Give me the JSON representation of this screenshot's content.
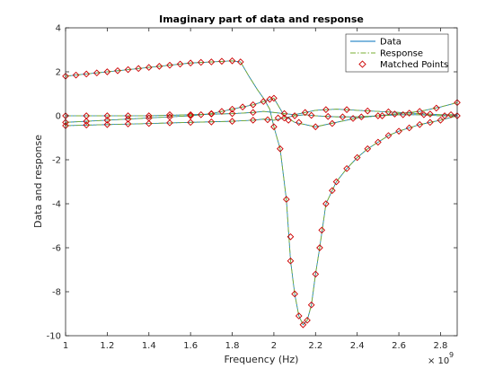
{
  "chart_data": {
    "type": "line",
    "title": "Imaginary part of data and response",
    "xlabel": "Frequency (Hz)",
    "ylabel": "Data and response",
    "x_exponent_label": "× 10",
    "x_exponent_power": "9",
    "xlim": [
      1.0,
      2.88
    ],
    "ylim": [
      -10,
      4
    ],
    "x_ticks": [
      1,
      1.2,
      1.4,
      1.6,
      1.8,
      2,
      2.2,
      2.4,
      2.6,
      2.8
    ],
    "x_tick_labels": [
      "1",
      "1.2",
      "1.4",
      "1.6",
      "1.8",
      "2",
      "2.2",
      "2.4",
      "2.6",
      "2.8"
    ],
    "y_ticks": [
      4,
      2,
      0,
      -2,
      -4,
      -6,
      -8,
      -10
    ],
    "y_tick_labels": [
      "4",
      "2",
      "0",
      "-2",
      "-4",
      "-6",
      "-8",
      "-10"
    ],
    "grid": false,
    "legend_position": "top-right",
    "legend": [
      "Data",
      "Response",
      "Matched Points"
    ],
    "colors": {
      "data": "#0072bd",
      "response": "#77ac30",
      "matched_points": "#cc0000",
      "axes": "#262626"
    },
    "series": [
      {
        "name": "Data",
        "x": [
          1.0,
          1.1,
          1.2,
          1.3,
          1.4,
          1.5,
          1.6,
          1.7,
          1.8,
          1.84,
          1.88,
          1.92,
          1.95,
          1.98,
          2.0,
          2.03,
          2.06,
          2.08,
          2.1,
          2.12,
          2.14,
          2.16,
          2.18,
          2.2,
          2.22,
          2.25,
          2.3,
          2.35,
          2.4,
          2.45,
          2.5,
          2.55,
          2.6,
          2.7,
          2.8,
          2.88
        ],
        "y": [
          1.8,
          1.9,
          2.0,
          2.1,
          2.2,
          2.3,
          2.4,
          2.45,
          2.5,
          2.45,
          1.8,
          1.2,
          0.8,
          0.3,
          -0.5,
          -1.5,
          -3.8,
          -6.6,
          -8.1,
          -9.1,
          -9.5,
          -9.3,
          -8.6,
          -7.2,
          -6.0,
          -4.0,
          -3.0,
          -2.4,
          -1.9,
          -1.5,
          -1.2,
          -0.9,
          -0.7,
          -0.4,
          -0.2,
          0.0
        ]
      },
      {
        "name": "Response",
        "x": [
          1.0,
          1.1,
          1.2,
          1.3,
          1.4,
          1.5,
          1.6,
          1.7,
          1.8,
          1.84,
          1.88,
          1.92,
          1.95,
          1.98,
          2.0,
          2.03,
          2.06,
          2.08,
          2.1,
          2.12,
          2.14,
          2.16,
          2.18,
          2.2,
          2.22,
          2.25,
          2.3,
          2.35,
          2.4,
          2.45,
          2.5,
          2.55,
          2.6,
          2.7,
          2.8,
          2.88
        ],
        "y": [
          1.8,
          1.9,
          2.0,
          2.1,
          2.2,
          2.3,
          2.4,
          2.45,
          2.5,
          2.45,
          1.8,
          1.2,
          0.8,
          0.3,
          -0.5,
          -1.5,
          -3.8,
          -6.6,
          -8.1,
          -9.1,
          -9.5,
          -9.3,
          -8.6,
          -7.2,
          -6.0,
          -4.0,
          -3.0,
          -2.4,
          -1.9,
          -1.5,
          -1.2,
          -0.9,
          -0.7,
          -0.4,
          -0.2,
          0.0
        ]
      },
      {
        "name": "Data",
        "x": [
          1.0,
          1.2,
          1.4,
          1.6,
          1.8,
          1.9,
          1.95,
          2.0,
          2.05,
          2.1,
          2.15,
          2.2,
          2.3,
          2.4,
          2.5,
          2.6,
          2.7,
          2.8,
          2.88
        ],
        "y": [
          0.0,
          0.0,
          0.0,
          0.05,
          0.1,
          0.15,
          0.2,
          0.15,
          0.1,
          0.05,
          0.15,
          0.25,
          0.3,
          0.25,
          0.2,
          0.15,
          0.1,
          0.05,
          0.05
        ]
      },
      {
        "name": "Response",
        "x": [
          1.0,
          1.2,
          1.4,
          1.6,
          1.8,
          1.9,
          1.95,
          2.0,
          2.05,
          2.1,
          2.15,
          2.2,
          2.3,
          2.4,
          2.5,
          2.6,
          2.7,
          2.8,
          2.88
        ],
        "y": [
          0.0,
          0.0,
          0.0,
          0.05,
          0.1,
          0.15,
          0.2,
          0.15,
          0.1,
          0.05,
          0.15,
          0.25,
          0.3,
          0.25,
          0.2,
          0.15,
          0.1,
          0.05,
          0.05
        ]
      },
      {
        "name": "Data",
        "x": [
          1.0,
          1.2,
          1.4,
          1.6,
          1.7,
          1.8,
          1.9,
          1.95,
          2.0,
          2.05,
          2.1,
          2.2,
          2.3,
          2.4,
          2.5,
          2.6,
          2.7,
          2.8,
          2.88
        ],
        "y": [
          -0.3,
          -0.2,
          -0.1,
          0.0,
          0.1,
          0.3,
          0.5,
          0.65,
          0.8,
          0.0,
          -0.3,
          -0.5,
          -0.3,
          -0.1,
          0.0,
          0.1,
          0.2,
          0.4,
          0.6
        ]
      },
      {
        "name": "Response",
        "x": [
          1.0,
          1.2,
          1.4,
          1.6,
          1.7,
          1.8,
          1.9,
          1.95,
          2.0,
          2.05,
          2.1,
          2.2,
          2.3,
          2.4,
          2.5,
          2.6,
          2.7,
          2.8,
          2.88
        ],
        "y": [
          -0.3,
          -0.2,
          -0.1,
          0.0,
          0.1,
          0.3,
          0.5,
          0.65,
          0.8,
          0.0,
          -0.3,
          -0.5,
          -0.3,
          -0.1,
          0.0,
          0.1,
          0.2,
          0.4,
          0.6
        ]
      },
      {
        "name": "Data",
        "x": [
          1.0,
          1.2,
          1.4,
          1.6,
          1.8,
          1.9,
          1.95,
          2.0,
          2.05,
          2.1,
          2.15,
          2.2,
          2.3,
          2.4,
          2.5,
          2.6,
          2.7,
          2.8,
          2.88
        ],
        "y": [
          -0.45,
          -0.4,
          -0.35,
          -0.3,
          -0.25,
          -0.2,
          -0.15,
          -0.2,
          -0.1,
          0.0,
          0.05,
          0.0,
          -0.05,
          -0.05,
          0.0,
          0.05,
          0.05,
          0.0,
          0.0
        ]
      },
      {
        "name": "Response",
        "x": [
          1.0,
          1.2,
          1.4,
          1.6,
          1.8,
          1.9,
          1.95,
          2.0,
          2.05,
          2.1,
          2.15,
          2.2,
          2.3,
          2.4,
          2.5,
          2.6,
          2.7,
          2.8,
          2.88
        ],
        "y": [
          -0.45,
          -0.4,
          -0.35,
          -0.3,
          -0.25,
          -0.2,
          -0.15,
          -0.2,
          -0.1,
          0.0,
          0.05,
          0.0,
          -0.05,
          -0.05,
          0.0,
          0.05,
          0.05,
          0.0,
          0.0
        ]
      }
    ],
    "matched_points": [
      {
        "x": 1.0,
        "y": 1.8
      },
      {
        "x": 1.05,
        "y": 1.85
      },
      {
        "x": 1.1,
        "y": 1.9
      },
      {
        "x": 1.15,
        "y": 1.95
      },
      {
        "x": 1.2,
        "y": 2.0
      },
      {
        "x": 1.25,
        "y": 2.05
      },
      {
        "x": 1.3,
        "y": 2.1
      },
      {
        "x": 1.35,
        "y": 2.15
      },
      {
        "x": 1.4,
        "y": 2.2
      },
      {
        "x": 1.45,
        "y": 2.25
      },
      {
        "x": 1.5,
        "y": 2.3
      },
      {
        "x": 1.55,
        "y": 2.35
      },
      {
        "x": 1.6,
        "y": 2.4
      },
      {
        "x": 1.65,
        "y": 2.43
      },
      {
        "x": 1.7,
        "y": 2.45
      },
      {
        "x": 1.75,
        "y": 2.48
      },
      {
        "x": 1.8,
        "y": 2.5
      },
      {
        "x": 1.84,
        "y": 2.45
      },
      {
        "x": 2.0,
        "y": -0.5
      },
      {
        "x": 2.03,
        "y": -1.5
      },
      {
        "x": 2.06,
        "y": -3.8
      },
      {
        "x": 2.08,
        "y": -5.5
      },
      {
        "x": 2.08,
        "y": -6.6
      },
      {
        "x": 2.1,
        "y": -8.1
      },
      {
        "x": 2.12,
        "y": -9.1
      },
      {
        "x": 2.14,
        "y": -9.5
      },
      {
        "x": 2.16,
        "y": -9.3
      },
      {
        "x": 2.18,
        "y": -8.6
      },
      {
        "x": 2.2,
        "y": -7.2
      },
      {
        "x": 2.22,
        "y": -6.0
      },
      {
        "x": 2.23,
        "y": -5.2
      },
      {
        "x": 2.25,
        "y": -4.0
      },
      {
        "x": 2.28,
        "y": -3.4
      },
      {
        "x": 2.3,
        "y": -3.0
      },
      {
        "x": 2.35,
        "y": -2.4
      },
      {
        "x": 2.4,
        "y": -1.9
      },
      {
        "x": 2.45,
        "y": -1.5
      },
      {
        "x": 2.5,
        "y": -1.2
      },
      {
        "x": 2.55,
        "y": -0.9
      },
      {
        "x": 2.6,
        "y": -0.7
      },
      {
        "x": 2.65,
        "y": -0.55
      },
      {
        "x": 2.7,
        "y": -0.4
      },
      {
        "x": 2.75,
        "y": -0.3
      },
      {
        "x": 2.8,
        "y": -0.2
      },
      {
        "x": 2.88,
        "y": 0.0
      },
      {
        "x": 1.0,
        "y": 0.0
      },
      {
        "x": 1.1,
        "y": 0.0
      },
      {
        "x": 1.2,
        "y": 0.0
      },
      {
        "x": 1.3,
        "y": 0.0
      },
      {
        "x": 1.4,
        "y": 0.0
      },
      {
        "x": 1.5,
        "y": 0.05
      },
      {
        "x": 1.6,
        "y": 0.05
      },
      {
        "x": 1.7,
        "y": 0.08
      },
      {
        "x": 1.8,
        "y": 0.1
      },
      {
        "x": 1.9,
        "y": 0.15
      },
      {
        "x": 2.05,
        "y": 0.1
      },
      {
        "x": 2.15,
        "y": 0.15
      },
      {
        "x": 2.25,
        "y": 0.28
      },
      {
        "x": 2.35,
        "y": 0.28
      },
      {
        "x": 2.45,
        "y": 0.22
      },
      {
        "x": 2.55,
        "y": 0.18
      },
      {
        "x": 2.65,
        "y": 0.12
      },
      {
        "x": 2.75,
        "y": 0.08
      },
      {
        "x": 2.85,
        "y": 0.05
      },
      {
        "x": 1.0,
        "y": -0.3
      },
      {
        "x": 1.1,
        "y": -0.25
      },
      {
        "x": 1.2,
        "y": -0.2
      },
      {
        "x": 1.3,
        "y": -0.15
      },
      {
        "x": 1.4,
        "y": -0.1
      },
      {
        "x": 1.5,
        "y": -0.05
      },
      {
        "x": 1.6,
        "y": 0.0
      },
      {
        "x": 1.65,
        "y": 0.05
      },
      {
        "x": 1.7,
        "y": 0.1
      },
      {
        "x": 1.75,
        "y": 0.2
      },
      {
        "x": 1.8,
        "y": 0.3
      },
      {
        "x": 1.85,
        "y": 0.4
      },
      {
        "x": 1.9,
        "y": 0.5
      },
      {
        "x": 1.95,
        "y": 0.65
      },
      {
        "x": 1.98,
        "y": 0.75
      },
      {
        "x": 2.0,
        "y": 0.8
      },
      {
        "x": 2.02,
        "y": -0.1
      },
      {
        "x": 2.07,
        "y": -0.2
      },
      {
        "x": 2.12,
        "y": -0.3
      },
      {
        "x": 2.2,
        "y": -0.5
      },
      {
        "x": 2.28,
        "y": -0.35
      },
      {
        "x": 2.38,
        "y": -0.12
      },
      {
        "x": 2.5,
        "y": 0.0
      },
      {
        "x": 2.58,
        "y": 0.08
      },
      {
        "x": 2.7,
        "y": 0.2
      },
      {
        "x": 2.78,
        "y": 0.35
      },
      {
        "x": 2.88,
        "y": 0.6
      },
      {
        "x": 1.0,
        "y": -0.45
      },
      {
        "x": 1.1,
        "y": -0.42
      },
      {
        "x": 1.2,
        "y": -0.4
      },
      {
        "x": 1.3,
        "y": -0.37
      },
      {
        "x": 1.4,
        "y": -0.35
      },
      {
        "x": 1.5,
        "y": -0.32
      },
      {
        "x": 1.6,
        "y": -0.3
      },
      {
        "x": 1.7,
        "y": -0.28
      },
      {
        "x": 1.8,
        "y": -0.25
      },
      {
        "x": 1.9,
        "y": -0.2
      },
      {
        "x": 1.97,
        "y": -0.18
      },
      {
        "x": 2.05,
        "y": -0.1
      },
      {
        "x": 2.1,
        "y": 0.0
      },
      {
        "x": 2.18,
        "y": 0.02
      },
      {
        "x": 2.26,
        "y": -0.03
      },
      {
        "x": 2.33,
        "y": -0.05
      },
      {
        "x": 2.42,
        "y": -0.05
      },
      {
        "x": 2.52,
        "y": 0.0
      },
      {
        "x": 2.62,
        "y": 0.05
      },
      {
        "x": 2.72,
        "y": 0.05
      },
      {
        "x": 2.82,
        "y": 0.0
      }
    ]
  }
}
